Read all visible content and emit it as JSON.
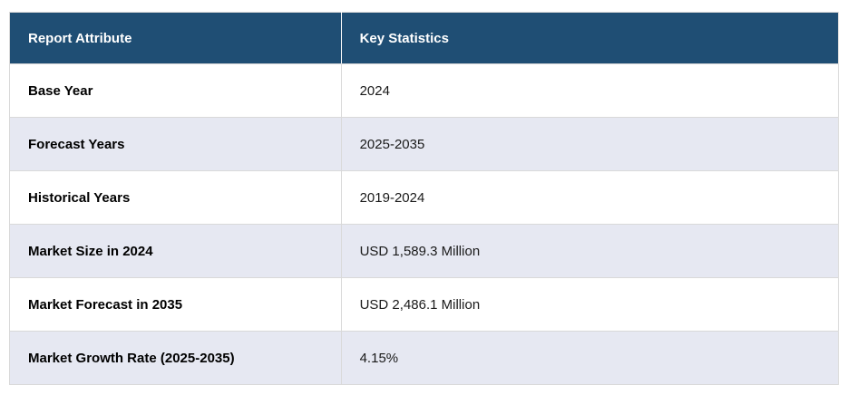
{
  "table": {
    "columns": {
      "attribute": "Report Attribute",
      "statistics": "Key Statistics"
    },
    "rows": [
      {
        "attribute": "Base Year",
        "value": "2024"
      },
      {
        "attribute": "Forecast Years",
        "value": "2025-2035"
      },
      {
        "attribute": "Historical Years",
        "value": "2019-2024"
      },
      {
        "attribute": "Market Size in 2024",
        "value": "USD 1,589.3 Million"
      },
      {
        "attribute": "Market Forecast in 2035",
        "value": "USD 2,486.1 Million"
      },
      {
        "attribute": "Market Growth Rate (2025-2035)",
        "value": "4.15%"
      }
    ],
    "colors": {
      "header_bg": "#1f4e74",
      "header_text": "#ffffff",
      "row_bg": "#ffffff",
      "row_alt_bg": "#e6e8f2",
      "border": "#d9d9d9"
    }
  }
}
